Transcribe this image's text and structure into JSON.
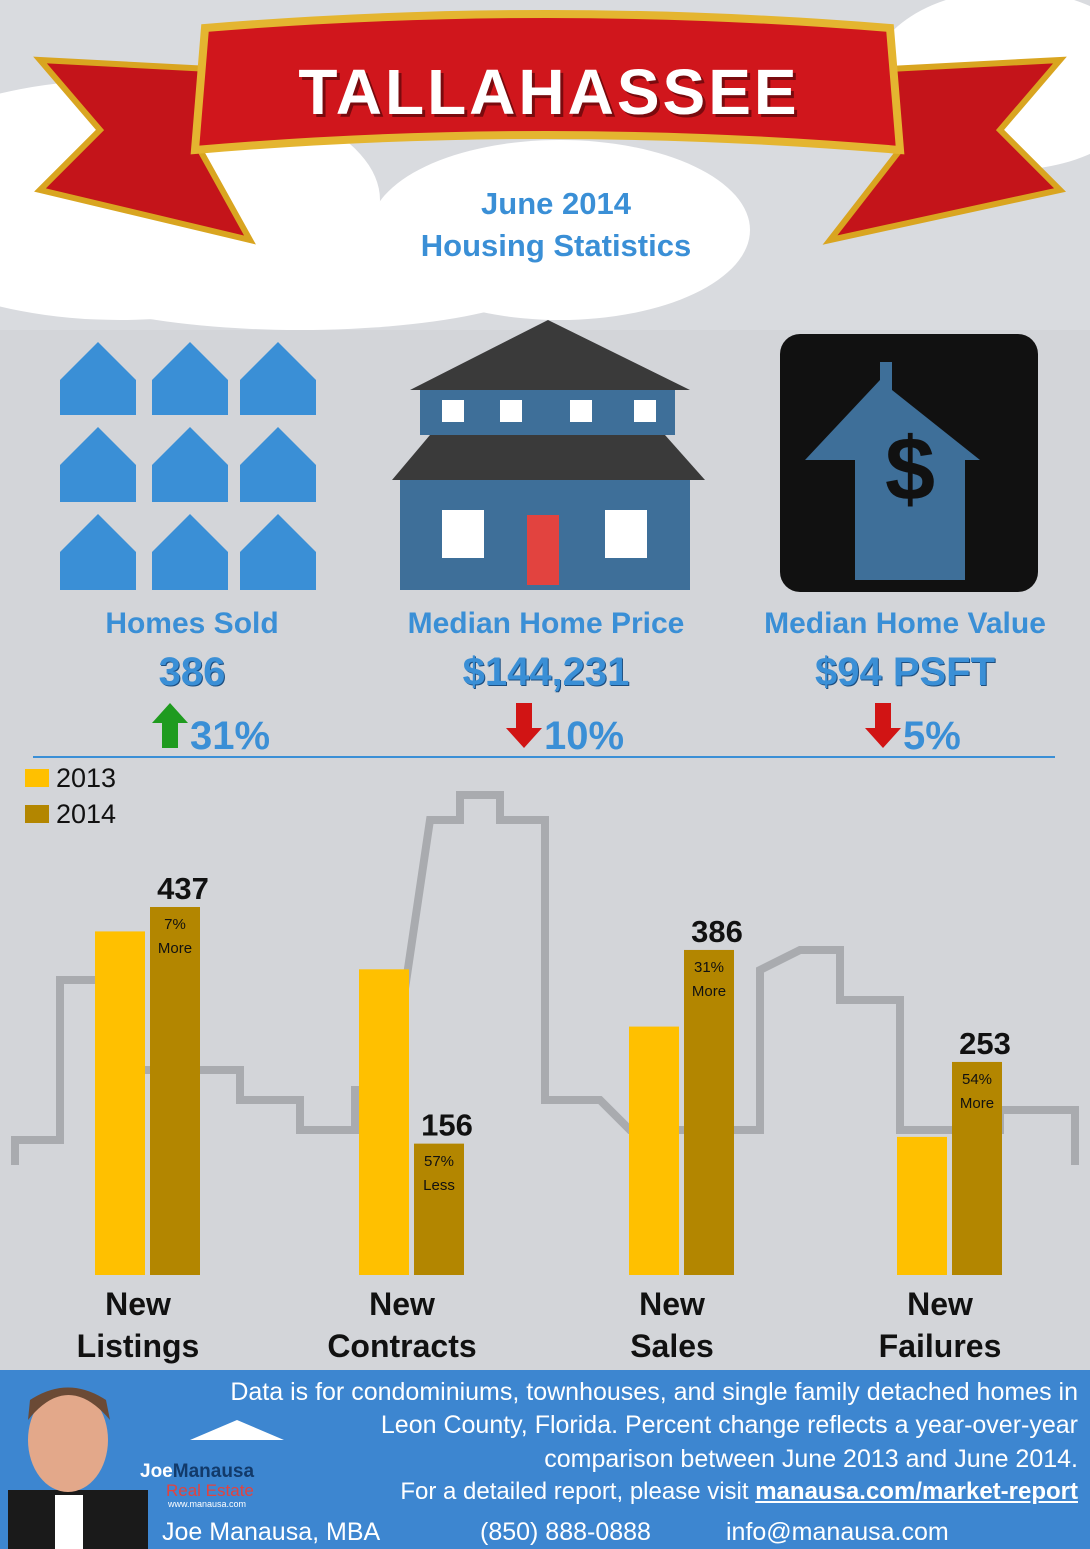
{
  "header": {
    "title": "TALLAHASSEE",
    "subtitle_line1": "June 2014",
    "subtitle_line2": "Housing Statistics"
  },
  "stats": [
    {
      "label": "Homes Sold",
      "value": "386",
      "change": "31%",
      "direction": "up"
    },
    {
      "label": "Median Home Price",
      "value": "$144,231",
      "change": "10%",
      "direction": "down"
    },
    {
      "label": "Median Home Value",
      "value": "$94 PSFT",
      "change": "5%",
      "direction": "down"
    }
  ],
  "chart_data": {
    "type": "bar",
    "categories": [
      "New Listings",
      "New Contracts",
      "New Sales",
      "New Failures"
    ],
    "series": [
      {
        "name": "2013",
        "color": "#ffc000",
        "values": [
          408,
          363,
          295,
          164
        ]
      },
      {
        "name": "2014",
        "color": "#b38600",
        "values": [
          437,
          156,
          386,
          253
        ]
      }
    ],
    "annotations": [
      "7% More",
      "57% Less",
      "31% More",
      "54% More"
    ],
    "legend": "top-left"
  },
  "footer": {
    "line1": "Data is for condominiums, townhouses, and single family detached homes in",
    "line2": "Leon County, Florida. Percent change reflects a year-over-year",
    "line3": "comparison between June 2013 and June 2014.",
    "line4": "For a detailed report, please visit",
    "link": "manausa.com/market-report",
    "name": "Joe Manausa, MBA",
    "phone": "(850) 888-0888",
    "email": "info@manausa.com",
    "logo1": "Joe",
    "logo2": "Manausa",
    "logo3": "Real Estate",
    "logo4": "www.manausa.com"
  }
}
